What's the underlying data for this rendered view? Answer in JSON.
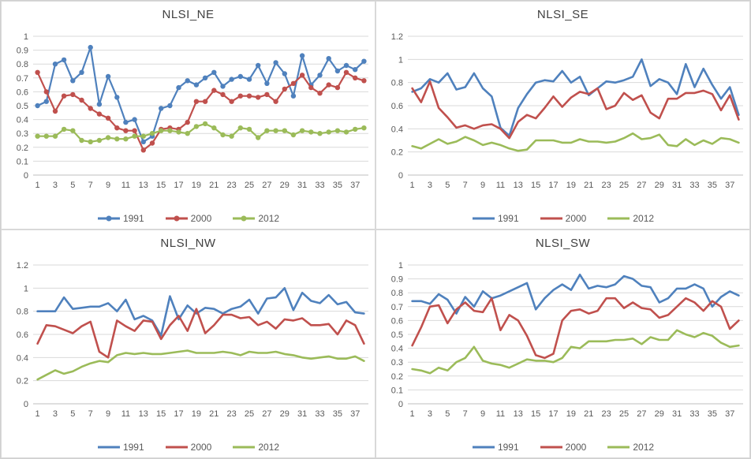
{
  "page": {
    "background": "#ffffff",
    "outer_border": "#d0d0d0",
    "panel_border": "#d9d9d9"
  },
  "palette": {
    "gridline": "#d9d9d9",
    "axis_line": "#bfbfbf",
    "tick_text": "#595959",
    "title_text": "#404040",
    "series_1991": "#4f81bd",
    "series_2000": "#c0504d",
    "series_2012": "#9bbb59"
  },
  "chart_data": [
    {
      "type": "line",
      "title": "NLSI_NE",
      "grid": true,
      "legend_position": "bottom",
      "markers": true,
      "ylim": [
        0,
        1
      ],
      "ytick_step": 0.1,
      "x_tick_labels": [
        1,
        3,
        5,
        7,
        9,
        11,
        13,
        15,
        17,
        19,
        21,
        23,
        25,
        27,
        29,
        31,
        33,
        35,
        37
      ],
      "categories": [
        1,
        2,
        3,
        4,
        5,
        6,
        7,
        8,
        9,
        10,
        11,
        12,
        13,
        14,
        15,
        16,
        17,
        18,
        19,
        20,
        21,
        22,
        23,
        24,
        25,
        26,
        27,
        28,
        29,
        30,
        31,
        32,
        33,
        34,
        35,
        36,
        37,
        38
      ],
      "series": [
        {
          "name": "1991",
          "color": "#4f81bd",
          "values": [
            0.5,
            0.53,
            0.8,
            0.83,
            0.68,
            0.74,
            0.92,
            0.51,
            0.71,
            0.56,
            0.38,
            0.4,
            0.24,
            0.28,
            0.48,
            0.5,
            0.63,
            0.68,
            0.65,
            0.7,
            0.74,
            0.64,
            0.69,
            0.71,
            0.69,
            0.79,
            0.66,
            0.81,
            0.73,
            0.57,
            0.86,
            0.65,
            0.72,
            0.84,
            0.75,
            0.79,
            0.76,
            0.82
          ]
        },
        {
          "name": "2000",
          "color": "#c0504d",
          "values": [
            0.74,
            0.6,
            0.46,
            0.57,
            0.58,
            0.54,
            0.48,
            0.44,
            0.41,
            0.34,
            0.32,
            0.32,
            0.18,
            0.23,
            0.33,
            0.34,
            0.33,
            0.38,
            0.53,
            0.53,
            0.61,
            0.58,
            0.53,
            0.57,
            0.57,
            0.56,
            0.58,
            0.53,
            0.62,
            0.66,
            0.72,
            0.63,
            0.59,
            0.65,
            0.63,
            0.74,
            0.7,
            0.68
          ]
        },
        {
          "name": "2012",
          "color": "#9bbb59",
          "values": [
            0.28,
            0.28,
            0.28,
            0.33,
            0.32,
            0.25,
            0.24,
            0.25,
            0.27,
            0.26,
            0.26,
            0.28,
            0.28,
            0.3,
            0.32,
            0.32,
            0.31,
            0.3,
            0.35,
            0.37,
            0.34,
            0.29,
            0.28,
            0.34,
            0.33,
            0.27,
            0.32,
            0.32,
            0.32,
            0.29,
            0.32,
            0.31,
            0.3,
            0.31,
            0.32,
            0.31,
            0.33,
            0.34
          ]
        }
      ]
    },
    {
      "type": "line",
      "title": "NLSI_SE",
      "grid": true,
      "legend_position": "bottom",
      "markers": false,
      "ylim": [
        0,
        1.2
      ],
      "ytick_step": 0.2,
      "x_tick_labels": [
        1,
        3,
        5,
        7,
        9,
        11,
        13,
        15,
        17,
        19,
        21,
        23,
        25,
        27,
        29,
        31,
        33,
        35,
        37
      ],
      "categories": [
        1,
        2,
        3,
        4,
        5,
        6,
        7,
        8,
        9,
        10,
        11,
        12,
        13,
        14,
        15,
        16,
        17,
        18,
        19,
        20,
        21,
        22,
        23,
        24,
        25,
        26,
        27,
        28,
        29,
        30,
        31,
        32,
        33,
        34,
        35,
        36,
        37,
        38
      ],
      "series": [
        {
          "name": "1991",
          "color": "#4f81bd",
          "values": [
            0.72,
            0.75,
            0.83,
            0.8,
            0.88,
            0.74,
            0.76,
            0.88,
            0.75,
            0.68,
            0.41,
            0.34,
            0.58,
            0.7,
            0.8,
            0.82,
            0.81,
            0.9,
            0.8,
            0.85,
            0.69,
            0.75,
            0.81,
            0.8,
            0.82,
            0.85,
            1.0,
            0.77,
            0.83,
            0.8,
            0.7,
            0.96,
            0.76,
            0.92,
            0.78,
            0.66,
            0.76,
            0.52
          ]
        },
        {
          "name": "2000",
          "color": "#c0504d",
          "values": [
            0.75,
            0.63,
            0.81,
            0.58,
            0.5,
            0.41,
            0.43,
            0.4,
            0.43,
            0.44,
            0.4,
            0.32,
            0.46,
            0.52,
            0.49,
            0.58,
            0.68,
            0.59,
            0.67,
            0.72,
            0.7,
            0.75,
            0.57,
            0.6,
            0.71,
            0.65,
            0.69,
            0.54,
            0.49,
            0.66,
            0.66,
            0.71,
            0.71,
            0.73,
            0.7,
            0.56,
            0.69,
            0.48
          ]
        },
        {
          "name": "2012",
          "color": "#9bbb59",
          "values": [
            0.25,
            0.23,
            0.27,
            0.31,
            0.27,
            0.29,
            0.33,
            0.3,
            0.26,
            0.28,
            0.26,
            0.23,
            0.21,
            0.22,
            0.3,
            0.3,
            0.3,
            0.28,
            0.28,
            0.31,
            0.29,
            0.29,
            0.28,
            0.29,
            0.32,
            0.36,
            0.31,
            0.32,
            0.35,
            0.26,
            0.25,
            0.31,
            0.26,
            0.3,
            0.27,
            0.32,
            0.31,
            0.28
          ]
        }
      ]
    },
    {
      "type": "line",
      "title": "NLSI_NW",
      "grid": true,
      "legend_position": "bottom",
      "markers": false,
      "ylim": [
        0,
        1.2
      ],
      "ytick_step": 0.2,
      "x_tick_labels": [
        1,
        3,
        5,
        7,
        9,
        11,
        13,
        15,
        17,
        19,
        21,
        23,
        25,
        27,
        29,
        31,
        33,
        35,
        37
      ],
      "categories": [
        1,
        2,
        3,
        4,
        5,
        6,
        7,
        8,
        9,
        10,
        11,
        12,
        13,
        14,
        15,
        16,
        17,
        18,
        19,
        20,
        21,
        22,
        23,
        24,
        25,
        26,
        27,
        28,
        29,
        30,
        31,
        32,
        33,
        34,
        35,
        36,
        37,
        38
      ],
      "series": [
        {
          "name": "1991",
          "color": "#4f81bd",
          "values": [
            0.8,
            0.8,
            0.8,
            0.92,
            0.82,
            0.83,
            0.84,
            0.84,
            0.87,
            0.8,
            0.9,
            0.73,
            0.76,
            0.72,
            0.59,
            0.93,
            0.73,
            0.85,
            0.78,
            0.83,
            0.82,
            0.78,
            0.82,
            0.84,
            0.9,
            0.78,
            0.91,
            0.92,
            1.0,
            0.81,
            0.96,
            0.89,
            0.87,
            0.94,
            0.86,
            0.88,
            0.79,
            0.78
          ]
        },
        {
          "name": "2000",
          "color": "#c0504d",
          "values": [
            0.52,
            0.68,
            0.67,
            0.64,
            0.61,
            0.67,
            0.71,
            0.45,
            0.4,
            0.72,
            0.67,
            0.63,
            0.72,
            0.71,
            0.56,
            0.68,
            0.76,
            0.63,
            0.82,
            0.61,
            0.68,
            0.77,
            0.77,
            0.74,
            0.75,
            0.68,
            0.71,
            0.65,
            0.73,
            0.72,
            0.74,
            0.68,
            0.68,
            0.69,
            0.6,
            0.72,
            0.68,
            0.52
          ]
        },
        {
          "name": "2012",
          "color": "#9bbb59",
          "values": [
            0.21,
            0.25,
            0.29,
            0.26,
            0.28,
            0.32,
            0.35,
            0.37,
            0.36,
            0.42,
            0.44,
            0.43,
            0.44,
            0.43,
            0.43,
            0.44,
            0.45,
            0.46,
            0.44,
            0.44,
            0.44,
            0.45,
            0.44,
            0.42,
            0.45,
            0.44,
            0.44,
            0.45,
            0.43,
            0.42,
            0.4,
            0.39,
            0.4,
            0.41,
            0.39,
            0.39,
            0.41,
            0.37
          ]
        }
      ]
    },
    {
      "type": "line",
      "title": "NLSI_SW",
      "grid": true,
      "legend_position": "bottom",
      "markers": false,
      "ylim": [
        0,
        1
      ],
      "ytick_step": 0.1,
      "x_tick_labels": [
        1,
        3,
        5,
        7,
        9,
        11,
        13,
        15,
        17,
        19,
        21,
        23,
        25,
        27,
        29,
        31,
        33,
        35,
        37
      ],
      "categories": [
        1,
        2,
        3,
        4,
        5,
        6,
        7,
        8,
        9,
        10,
        11,
        12,
        13,
        14,
        15,
        16,
        17,
        18,
        19,
        20,
        21,
        22,
        23,
        24,
        25,
        26,
        27,
        28,
        29,
        30,
        31,
        32,
        33,
        34,
        35,
        36,
        37,
        38
      ],
      "series": [
        {
          "name": "1991",
          "color": "#4f81bd",
          "values": [
            0.74,
            0.74,
            0.72,
            0.79,
            0.75,
            0.65,
            0.77,
            0.7,
            0.81,
            0.76,
            0.78,
            0.81,
            0.84,
            0.87,
            0.68,
            0.76,
            0.82,
            0.86,
            0.82,
            0.93,
            0.83,
            0.85,
            0.84,
            0.86,
            0.92,
            0.9,
            0.85,
            0.84,
            0.73,
            0.76,
            0.83,
            0.83,
            0.86,
            0.83,
            0.7,
            0.77,
            0.81,
            0.78
          ]
        },
        {
          "name": "2000",
          "color": "#c0504d",
          "values": [
            0.42,
            0.55,
            0.7,
            0.71,
            0.58,
            0.68,
            0.73,
            0.67,
            0.66,
            0.76,
            0.53,
            0.64,
            0.6,
            0.49,
            0.35,
            0.33,
            0.36,
            0.6,
            0.67,
            0.68,
            0.65,
            0.67,
            0.76,
            0.76,
            0.69,
            0.73,
            0.69,
            0.68,
            0.62,
            0.64,
            0.7,
            0.76,
            0.73,
            0.67,
            0.74,
            0.7,
            0.54,
            0.6
          ]
        },
        {
          "name": "2012",
          "color": "#9bbb59",
          "values": [
            0.25,
            0.24,
            0.22,
            0.26,
            0.24,
            0.3,
            0.33,
            0.41,
            0.31,
            0.29,
            0.28,
            0.26,
            0.29,
            0.32,
            0.31,
            0.31,
            0.3,
            0.33,
            0.41,
            0.4,
            0.45,
            0.45,
            0.45,
            0.46,
            0.46,
            0.47,
            0.43,
            0.48,
            0.46,
            0.46,
            0.53,
            0.5,
            0.48,
            0.51,
            0.49,
            0.44,
            0.41,
            0.42
          ]
        }
      ]
    }
  ]
}
